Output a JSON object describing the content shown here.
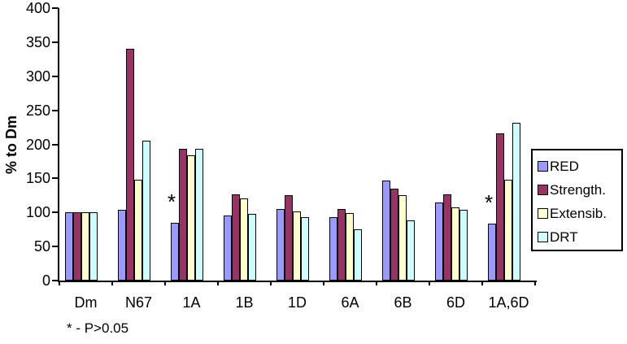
{
  "chart_data": {
    "type": "bar",
    "title": "",
    "xlabel": "",
    "ylabel": "% to Dm",
    "ylim": [
      0,
      400
    ],
    "ytick_step": 50,
    "grid": false,
    "legend_position": "right",
    "plot_background": "#ffffff",
    "bar_border_color": "#000000",
    "categories": [
      "Dm",
      "N67",
      "1A",
      "1B",
      "1D",
      "6A",
      "6B",
      "6D",
      "1A,6D"
    ],
    "series": [
      {
        "name": "RED",
        "color": "#9999FF",
        "values": [
          100,
          104,
          85,
          95,
          105,
          93,
          147,
          115,
          83
        ]
      },
      {
        "name": "Strength.",
        "color": "#993366",
        "values": [
          100,
          340,
          193,
          127,
          125,
          105,
          135,
          127,
          216
        ]
      },
      {
        "name": "Extensib.",
        "color": "#FFFFCC",
        "values": [
          100,
          148,
          184,
          121,
          102,
          99,
          125,
          107,
          148
        ]
      },
      {
        "name": "DRT",
        "color": "#CCFFFF",
        "values": [
          100,
          205,
          193,
          98,
          93,
          75,
          88,
          104,
          232
        ]
      }
    ],
    "annotations": [
      {
        "text": "*",
        "category": "1A",
        "series": "RED"
      },
      {
        "text": "*",
        "category": "1A,6D",
        "series": "RED"
      }
    ],
    "footnote": "* - P>0.05"
  }
}
